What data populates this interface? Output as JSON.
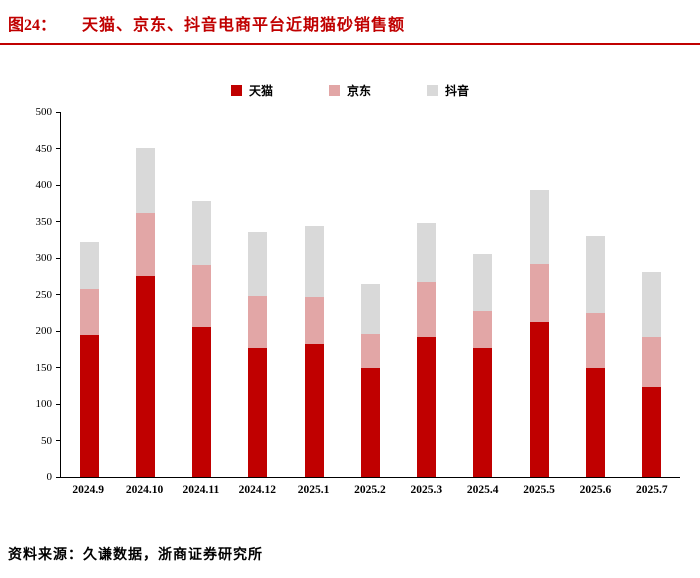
{
  "header": {
    "fig_label": "图24：",
    "title": "天猫、京东、抖音电商平台近期猫砂销售额"
  },
  "footer": {
    "source": "资料来源：久谦数据，浙商证券研究所"
  },
  "colors": {
    "tianmao": "#c00000",
    "jingdong": "#e2a6a6",
    "douyin": "#d9d9d9",
    "accent": "#c00000",
    "axis": "#000000"
  },
  "chart_data": {
    "type": "bar",
    "stacked": true,
    "title": "天猫、京东、抖音电商平台近期猫砂销售额",
    "xlabel": "",
    "ylabel": "",
    "ylim": [
      0,
      500
    ],
    "ytick_step": 50,
    "grid": false,
    "legend_position": "top",
    "categories": [
      "2024.9",
      "2024.10",
      "2024.11",
      "2024.12",
      "2025.1",
      "2025.2",
      "2025.3",
      "2025.4",
      "2025.5",
      "2025.6",
      "2025.7"
    ],
    "series": [
      {
        "name": "天猫",
        "color_key": "tianmao",
        "values": [
          195,
          275,
          205,
          177,
          182,
          150,
          192,
          177,
          213,
          150,
          123
        ]
      },
      {
        "name": "京东",
        "color_key": "jingdong",
        "values": [
          62,
          86,
          85,
          71,
          65,
          46,
          75,
          51,
          79,
          74,
          69
        ]
      },
      {
        "name": "抖音",
        "color_key": "douyin",
        "values": [
          65,
          90,
          88,
          87,
          97,
          68,
          81,
          78,
          101,
          106,
          89
        ]
      }
    ]
  }
}
